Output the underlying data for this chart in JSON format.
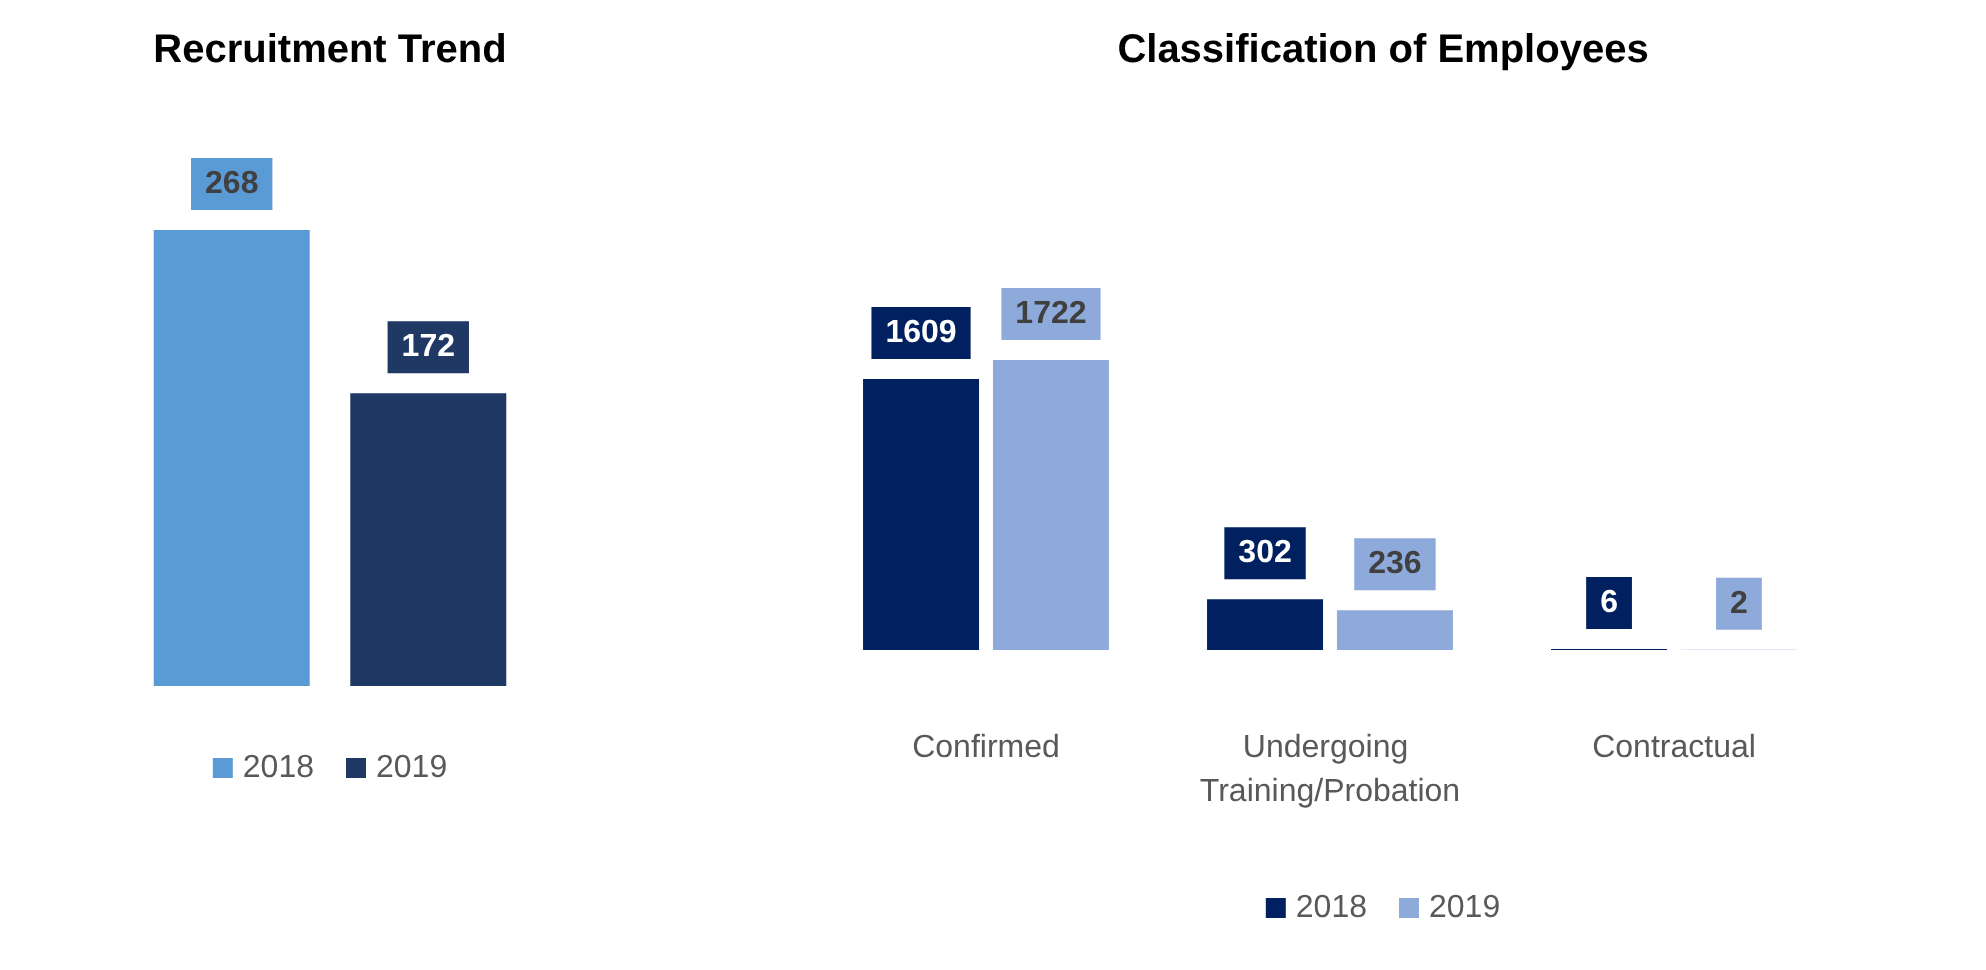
{
  "chart_data": [
    {
      "type": "bar",
      "title": "Recruitment Trend",
      "categories": [
        null
      ],
      "series": [
        {
          "name": "2018",
          "color": "#5b9bd5",
          "values": [
            268
          ]
        },
        {
          "name": "2019",
          "color": "#1f3864",
          "values": [
            172
          ]
        }
      ],
      "data_labels": true,
      "legend": "bottom"
    },
    {
      "type": "bar",
      "title": "Classification of Employees",
      "categories": [
        "Confirmed",
        "Undergoing Training/Probation",
        "Contractual"
      ],
      "series": [
        {
          "name": "2018",
          "color": "#002060",
          "values": [
            1609,
            302,
            6
          ]
        },
        {
          "name": "2019",
          "color": "#8eaadb",
          "values": [
            1722,
            236,
            2
          ]
        }
      ],
      "data_labels": true,
      "legend": "bottom"
    }
  ]
}
